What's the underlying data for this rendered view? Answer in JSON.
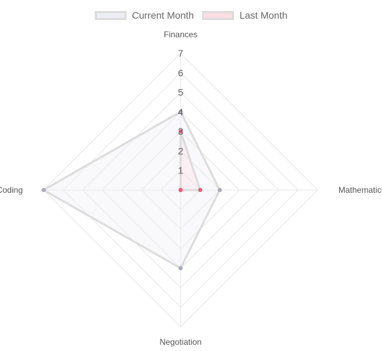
{
  "chart_data": {
    "type": "radar",
    "categories": [
      "Finances",
      "Mathematics",
      "Negotiation",
      "Coding"
    ],
    "series": [
      {
        "name": "Current Month",
        "values": [
          4,
          2,
          4,
          7
        ],
        "fill": "#eeeef7",
        "stroke": "#dcdcdc",
        "point": "#a9a9bd"
      },
      {
        "name": "Last Month",
        "values": [
          3,
          1,
          0,
          0
        ],
        "fill": "#ffdde3",
        "stroke": "#dcdcdc",
        "point": "#ec5a7c"
      }
    ],
    "r_ticks": [
      "1",
      "2",
      "3",
      "4",
      "5",
      "6",
      "7"
    ],
    "r_range": [
      0,
      7
    ],
    "grid": true,
    "legend_position": "top"
  }
}
